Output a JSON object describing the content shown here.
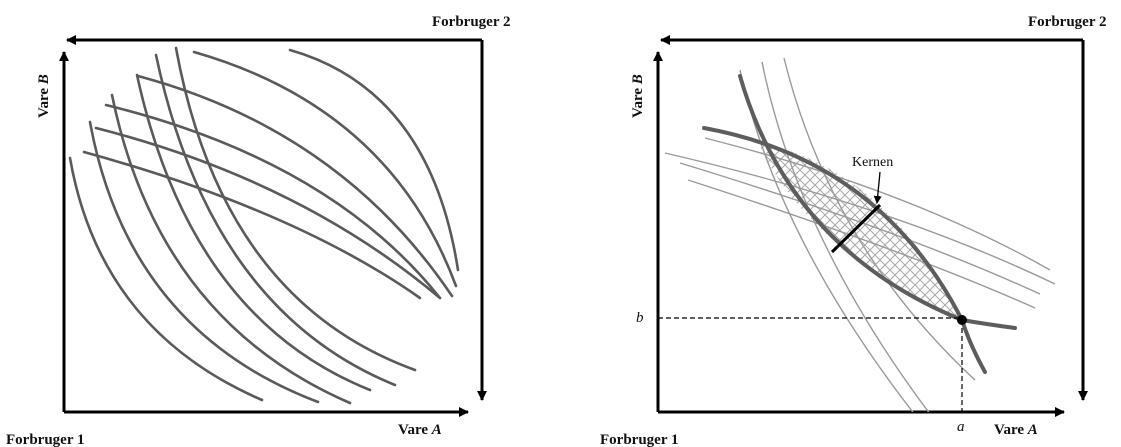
{
  "left_panel": {
    "consumer2_label": "Forbruger 2",
    "consumer1_label": "Forbruger 1",
    "x_axis_prefix": "Vare ",
    "x_axis_var": "A",
    "y_axis_prefix": "Vare ",
    "y_axis_var": "B"
  },
  "right_panel": {
    "consumer2_label": "Forbruger 2",
    "consumer1_label": "Forbruger 1",
    "x_axis_prefix": "Vare ",
    "x_axis_var": "A",
    "y_axis_prefix": "Vare ",
    "y_axis_var": "B",
    "core_label": "Kernen",
    "endowment_x_label": "a",
    "endowment_y_label": "b"
  },
  "colors": {
    "axes": "#000000",
    "curves_left": "#5a5a5a",
    "curves_thin": "#9a9a9a",
    "curves_thick": "#5d5d5d",
    "hatch": "#a8a8a8"
  }
}
